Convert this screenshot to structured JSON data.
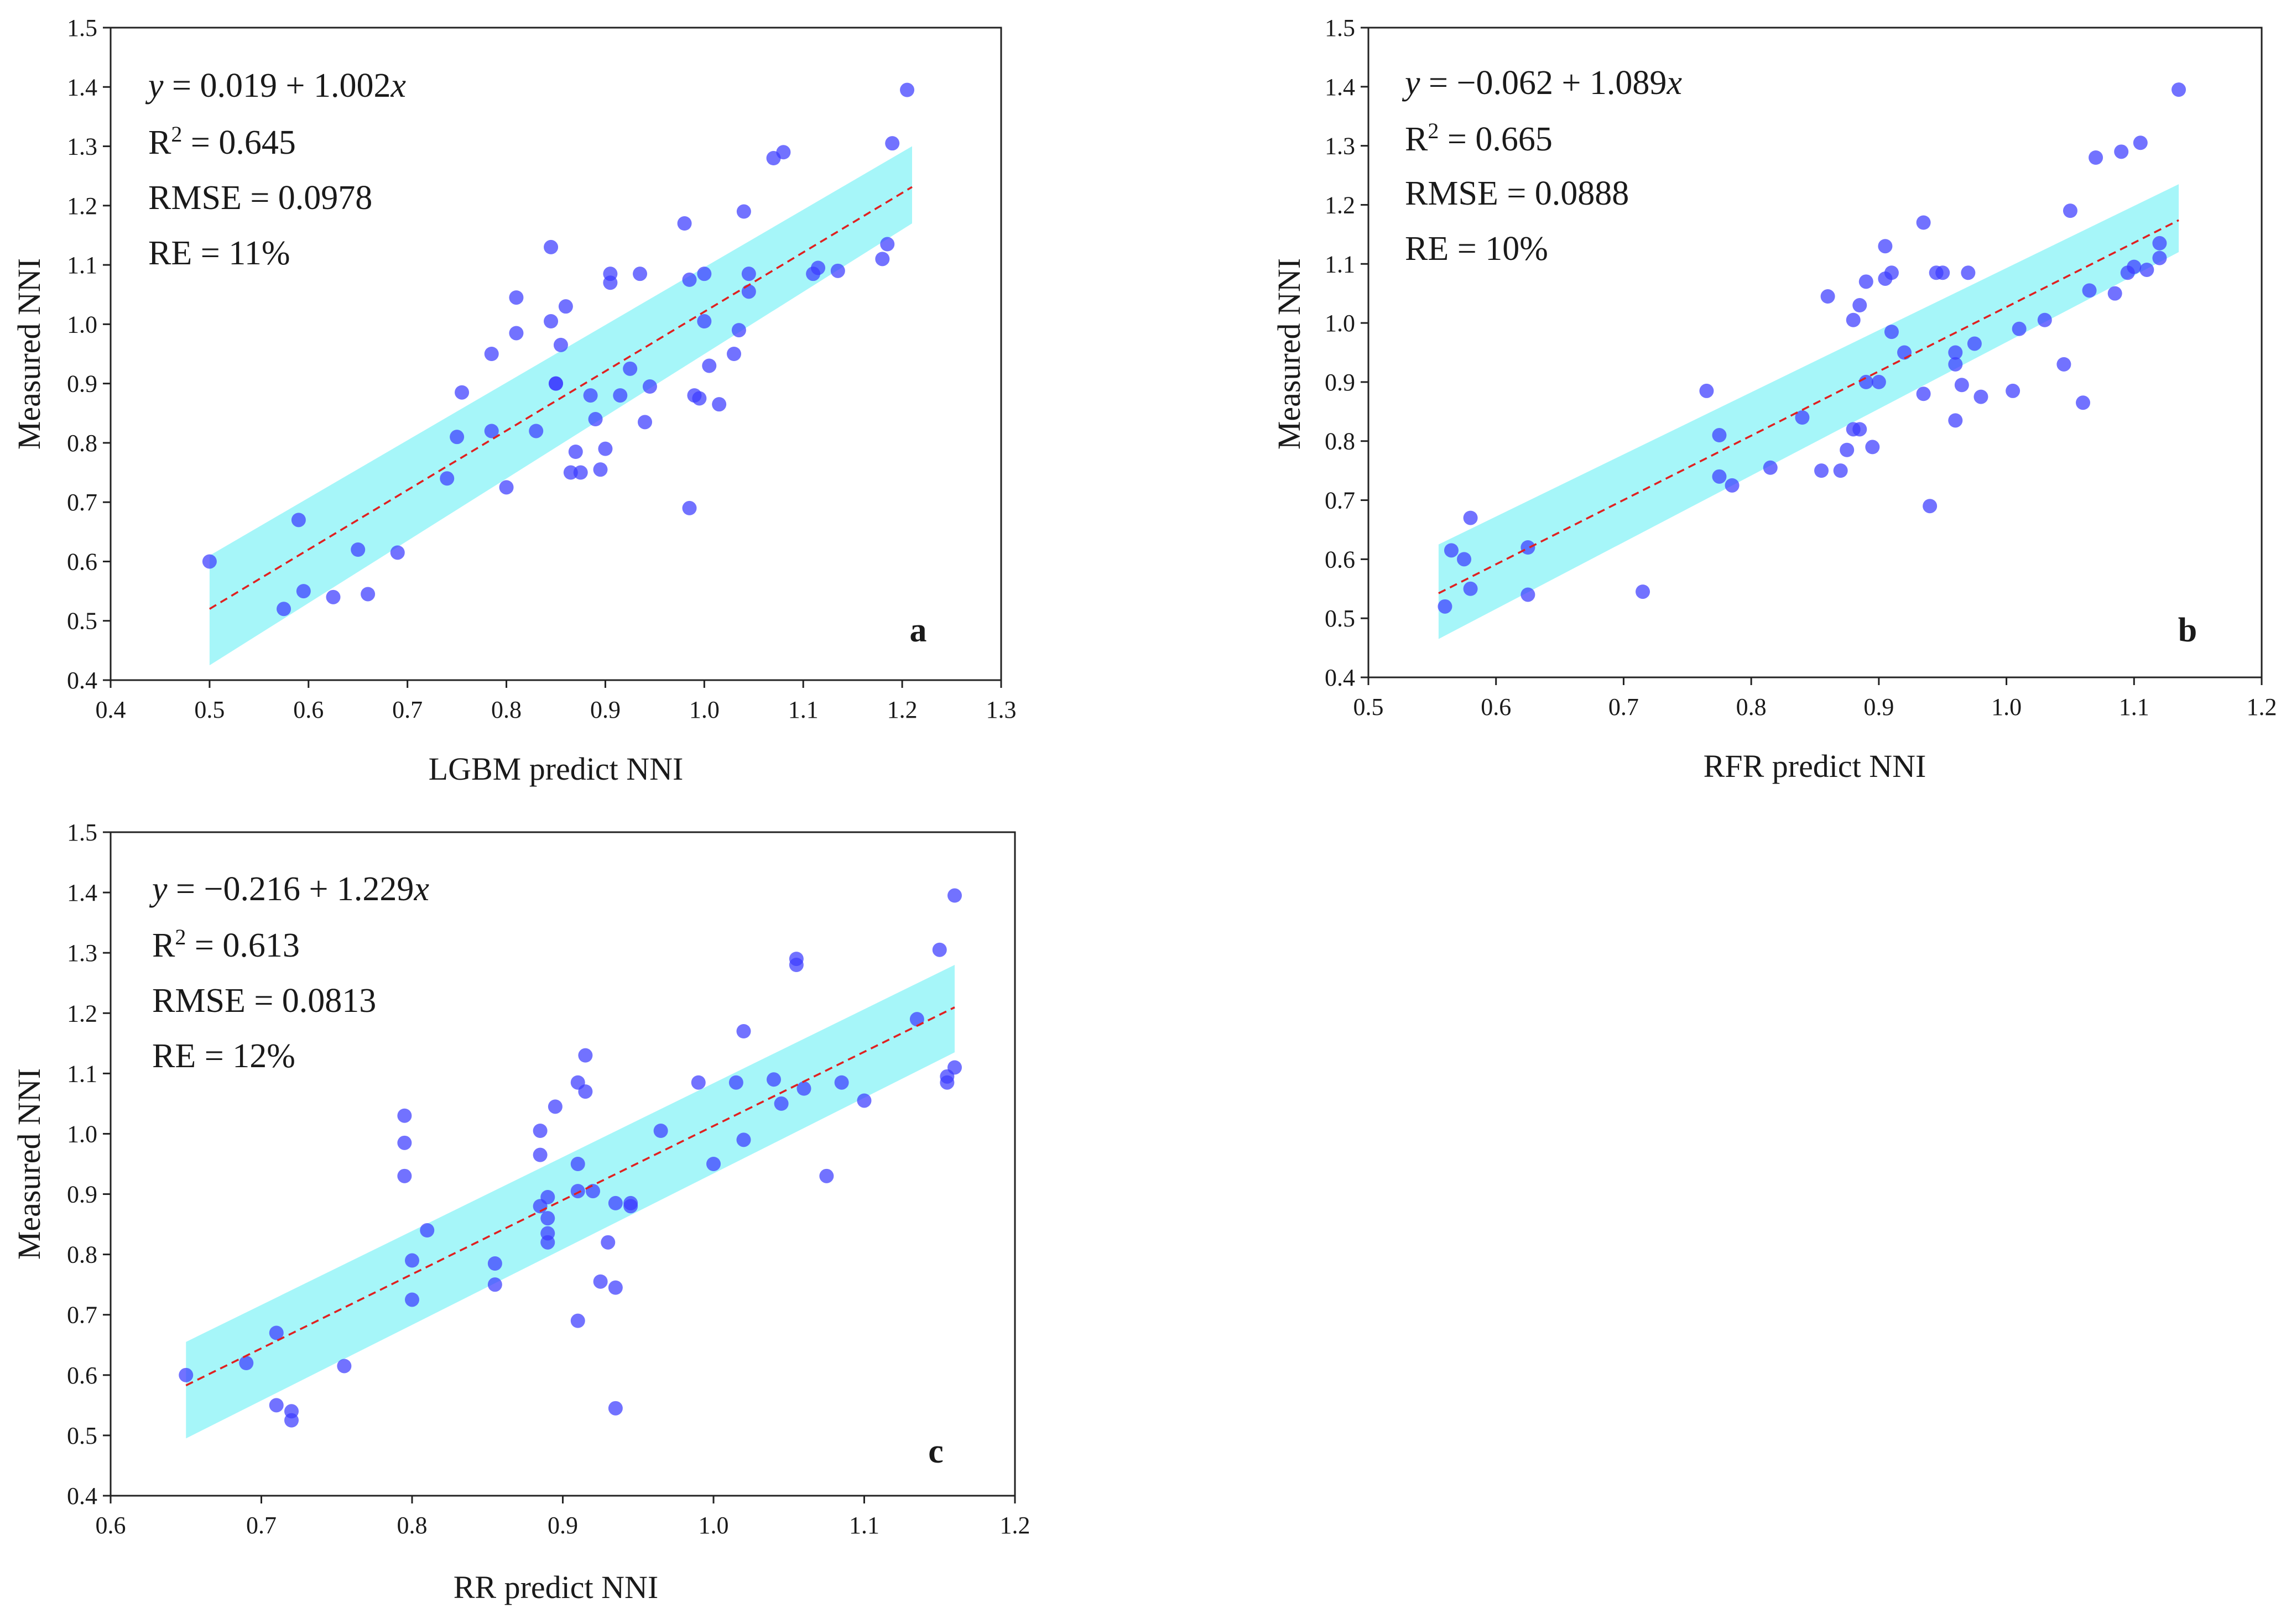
{
  "colors": {
    "band": "#00e5ee",
    "band_opacity": 0.35,
    "point": "#3b3bff",
    "point_opacity": 0.72,
    "fit_line": "#e02020",
    "axis": "#222222"
  },
  "chart_data": [
    {
      "id": "a",
      "type": "scatter",
      "panel_label": "a",
      "xlabel": "LGBM predict NNI",
      "ylabel": "Measured NNI",
      "xlim": [
        0.4,
        1.3
      ],
      "ylim": [
        0.4,
        1.5
      ],
      "xticks": [
        "0.4",
        "0.5",
        "0.6",
        "0.7",
        "0.8",
        "0.9",
        "1.0",
        "1.1",
        "1.2",
        "1.3"
      ],
      "yticks": [
        "0.4",
        "0.5",
        "0.6",
        "0.7",
        "0.8",
        "0.9",
        "1.0",
        "1.1",
        "1.2",
        "1.3",
        "1.4",
        "1.5"
      ],
      "equation": {
        "prefix": "y",
        "rhs": " = 0.019 + 1.002",
        "var": "x"
      },
      "r2": {
        "label": "R",
        "sup": "2",
        "value": " = 0.645"
      },
      "rmse": "RMSE = 0.0978",
      "re": "RE = 11%",
      "fit": {
        "intercept": 0.019,
        "slope": 1.002,
        "x_range": [
          0.5,
          1.21
        ]
      },
      "band": {
        "x_range": [
          0.5,
          1.21
        ],
        "lower_end": [
          0.425,
          1.17
        ],
        "upper_end": [
          0.61,
          1.3
        ]
      },
      "x": [
        0.5,
        0.575,
        0.59,
        0.595,
        0.625,
        0.65,
        0.66,
        0.69,
        0.74,
        0.75,
        0.755,
        0.785,
        0.785,
        0.8,
        0.81,
        0.81,
        0.83,
        0.845,
        0.845,
        0.85,
        0.85,
        0.855,
        0.86,
        0.865,
        0.87,
        0.875,
        0.885,
        0.89,
        0.895,
        0.9,
        0.905,
        0.905,
        0.915,
        0.925,
        0.935,
        0.94,
        0.945,
        0.98,
        0.985,
        0.985,
        0.99,
        0.995,
        1.0,
        1.0,
        1.005,
        1.015,
        1.03,
        1.035,
        1.04,
        1.045,
        1.045,
        1.07,
        1.08,
        1.11,
        1.115,
        1.135,
        1.18,
        1.185,
        1.19,
        1.205
      ],
      "y": [
        0.6,
        0.52,
        0.67,
        0.55,
        0.54,
        0.62,
        0.545,
        0.615,
        0.74,
        0.81,
        0.885,
        0.95,
        0.82,
        0.725,
        0.985,
        1.045,
        0.82,
        1.13,
        1.005,
        0.9,
        0.9,
        0.965,
        1.03,
        0.75,
        0.785,
        0.75,
        0.88,
        0.84,
        0.755,
        0.79,
        1.085,
        1.07,
        0.88,
        0.925,
        1.085,
        0.835,
        0.895,
        1.17,
        0.69,
        1.075,
        0.88,
        0.875,
        1.005,
        1.085,
        0.93,
        0.865,
        0.95,
        0.99,
        1.19,
        1.055,
        1.085,
        1.28,
        1.29,
        1.085,
        1.095,
        1.09,
        1.11,
        1.135,
        1.305,
        1.395
      ]
    },
    {
      "id": "b",
      "type": "scatter",
      "panel_label": "b",
      "xlabel": "RFR predict NNI",
      "ylabel": "Measured NNI",
      "xlim": [
        0.5,
        1.2
      ],
      "ylim": [
        0.4,
        1.5
      ],
      "xticks": [
        "0.5",
        "0.6",
        "0.7",
        "0.8",
        "0.9",
        "1.0",
        "1.1",
        "1.2"
      ],
      "yticks": [
        "0.4",
        "0.5",
        "0.6",
        "0.7",
        "0.8",
        "0.9",
        "1.0",
        "1.1",
        "1.2",
        "1.3",
        "1.4",
        "1.5"
      ],
      "equation": {
        "prefix": "y",
        "rhs": " = −0.062 + 1.089",
        "var": "x"
      },
      "r2": {
        "label": "R",
        "sup": "2",
        "value": " = 0.665"
      },
      "rmse": "RMSE = 0.0888",
      "re": "RE = 10%",
      "fit": {
        "intercept": -0.062,
        "slope": 1.089,
        "x_range": [
          0.555,
          1.135
        ]
      },
      "band": {
        "x_range": [
          0.555,
          1.135
        ],
        "lower_end": [
          0.465,
          1.12
        ],
        "upper_end": [
          0.625,
          1.235
        ]
      },
      "x": [
        0.56,
        0.565,
        0.575,
        0.58,
        0.58,
        0.625,
        0.625,
        0.715,
        0.765,
        0.775,
        0.775,
        0.785,
        0.815,
        0.84,
        0.855,
        0.86,
        0.87,
        0.875,
        0.88,
        0.88,
        0.885,
        0.885,
        0.89,
        0.89,
        0.895,
        0.9,
        0.905,
        0.905,
        0.91,
        0.91,
        0.92,
        0.935,
        0.935,
        0.94,
        0.945,
        0.95,
        0.96,
        0.96,
        0.96,
        0.965,
        0.97,
        0.975,
        0.98,
        1.005,
        1.01,
        1.03,
        1.045,
        1.05,
        1.06,
        1.065,
        1.07,
        1.085,
        1.09,
        1.095,
        1.1,
        1.105,
        1.11,
        1.12,
        1.12,
        1.135
      ],
      "y": [
        0.52,
        0.615,
        0.6,
        0.55,
        0.67,
        0.54,
        0.62,
        0.545,
        0.885,
        0.74,
        0.81,
        0.725,
        0.755,
        0.84,
        0.75,
        1.045,
        0.75,
        0.785,
        1.005,
        0.82,
        1.03,
        0.82,
        0.9,
        1.07,
        0.79,
        0.9,
        1.13,
        1.075,
        1.085,
        0.985,
        0.95,
        1.17,
        0.88,
        0.69,
        1.085,
        1.085,
        0.93,
        0.835,
        0.95,
        0.895,
        1.085,
        0.965,
        0.875,
        0.885,
        0.99,
        1.005,
        0.93,
        1.19,
        0.865,
        1.055,
        1.28,
        1.05,
        1.29,
        1.085,
        1.095,
        1.305,
        1.09,
        1.135,
        1.11,
        1.395
      ]
    },
    {
      "id": "c",
      "type": "scatter",
      "panel_label": "c",
      "xlabel": "RR predict NNI",
      "ylabel": "Measured NNI",
      "xlim": [
        0.6,
        1.2
      ],
      "ylim": [
        0.4,
        1.5
      ],
      "xticks": [
        "0.6",
        "0.7",
        "0.8",
        "0.9",
        "1.0",
        "1.1",
        "1.2"
      ],
      "yticks": [
        "0.4",
        "0.5",
        "0.6",
        "0.7",
        "0.8",
        "0.9",
        "1.0",
        "1.1",
        "1.2",
        "1.3",
        "1.4",
        "1.5"
      ],
      "equation": {
        "prefix": "y",
        "rhs": " = −0.216 + 1.229",
        "var": "x"
      },
      "r2": {
        "label": "R",
        "sup": "2",
        "value": " = 0.613"
      },
      "rmse": "RMSE = 0.0813",
      "re": "RE = 12%",
      "fit": {
        "intercept": -0.216,
        "slope": 1.229,
        "x_range": [
          0.65,
          1.16
        ]
      },
      "band": {
        "x_range": [
          0.65,
          1.16
        ],
        "lower_end": [
          0.495,
          1.135
        ],
        "upper_end": [
          0.655,
          1.28
        ]
      },
      "x": [
        0.65,
        0.69,
        0.71,
        0.71,
        0.72,
        0.72,
        0.755,
        0.795,
        0.795,
        0.795,
        0.8,
        0.8,
        0.81,
        0.855,
        0.855,
        0.885,
        0.885,
        0.885,
        0.89,
        0.89,
        0.89,
        0.89,
        0.895,
        0.91,
        0.91,
        0.91,
        0.91,
        0.915,
        0.915,
        0.92,
        0.925,
        0.93,
        0.935,
        0.935,
        0.935,
        0.945,
        0.945,
        0.965,
        0.99,
        1.0,
        1.015,
        1.02,
        1.02,
        1.04,
        1.045,
        1.055,
        1.055,
        1.06,
        1.075,
        1.085,
        1.1,
        1.135,
        1.15,
        1.155,
        1.155,
        1.16,
        1.16
      ],
      "y": [
        0.6,
        0.62,
        0.67,
        0.55,
        0.54,
        0.525,
        0.615,
        1.03,
        0.985,
        0.93,
        0.79,
        0.725,
        0.84,
        0.785,
        0.75,
        1.005,
        0.965,
        0.88,
        0.835,
        0.895,
        0.86,
        0.82,
        1.045,
        1.085,
        0.95,
        0.905,
        0.69,
        1.13,
        1.07,
        0.905,
        0.755,
        0.82,
        0.885,
        0.745,
        0.545,
        0.88,
        0.885,
        1.005,
        1.085,
        0.95,
        1.085,
        1.17,
        0.99,
        1.09,
        1.05,
        1.29,
        1.28,
        1.075,
        0.93,
        1.085,
        1.055,
        1.19,
        1.305,
        1.085,
        1.095,
        1.11,
        1.395
      ]
    }
  ]
}
